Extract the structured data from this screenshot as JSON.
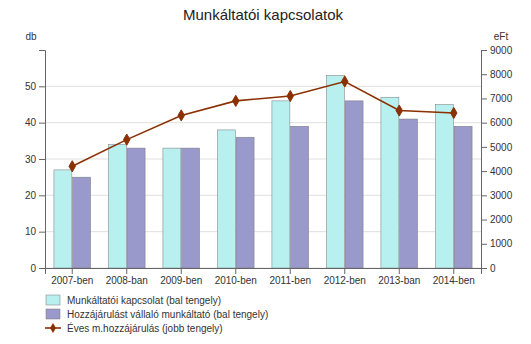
{
  "chart_data": {
    "type": "bar",
    "title": "Munkáltatói kapcsolatok",
    "ylabel": "db",
    "y2label": "eFt",
    "categories": [
      "2007-ben",
      "2008-ban",
      "2009-ben",
      "2010-ben",
      "2011-ben",
      "2012-ben",
      "2013-ban",
      "2014-ben"
    ],
    "series": [
      {
        "name": "Munkáltatói kapcsolat (bal tengely)",
        "type": "bar",
        "color": "#b8f0f0",
        "values": [
          27,
          34,
          33,
          38,
          46,
          53,
          47,
          45
        ]
      },
      {
        "name": "Hozzájárulást vállaló munkáltató (bal tengely)",
        "type": "bar",
        "color": "#9999cc",
        "values": [
          25,
          33,
          33,
          36,
          39,
          46,
          41,
          39
        ]
      },
      {
        "name": "Éves m.hozzájárulás (jobb tengely)",
        "type": "line",
        "axis": "y2",
        "color": "#8b3000",
        "marker": "diamond",
        "values": [
          4200,
          5300,
          6300,
          6900,
          7100,
          7700,
          6500,
          6400
        ]
      }
    ],
    "ylim": [
      0,
      60
    ],
    "yticks": [
      0,
      10,
      20,
      30,
      40,
      50
    ],
    "y2lim": [
      0,
      9000
    ],
    "y2ticks": [
      0,
      1000,
      2000,
      3000,
      4000,
      5000,
      6000,
      7000,
      8000,
      9000
    ],
    "grid": true,
    "legend": "lower left"
  }
}
